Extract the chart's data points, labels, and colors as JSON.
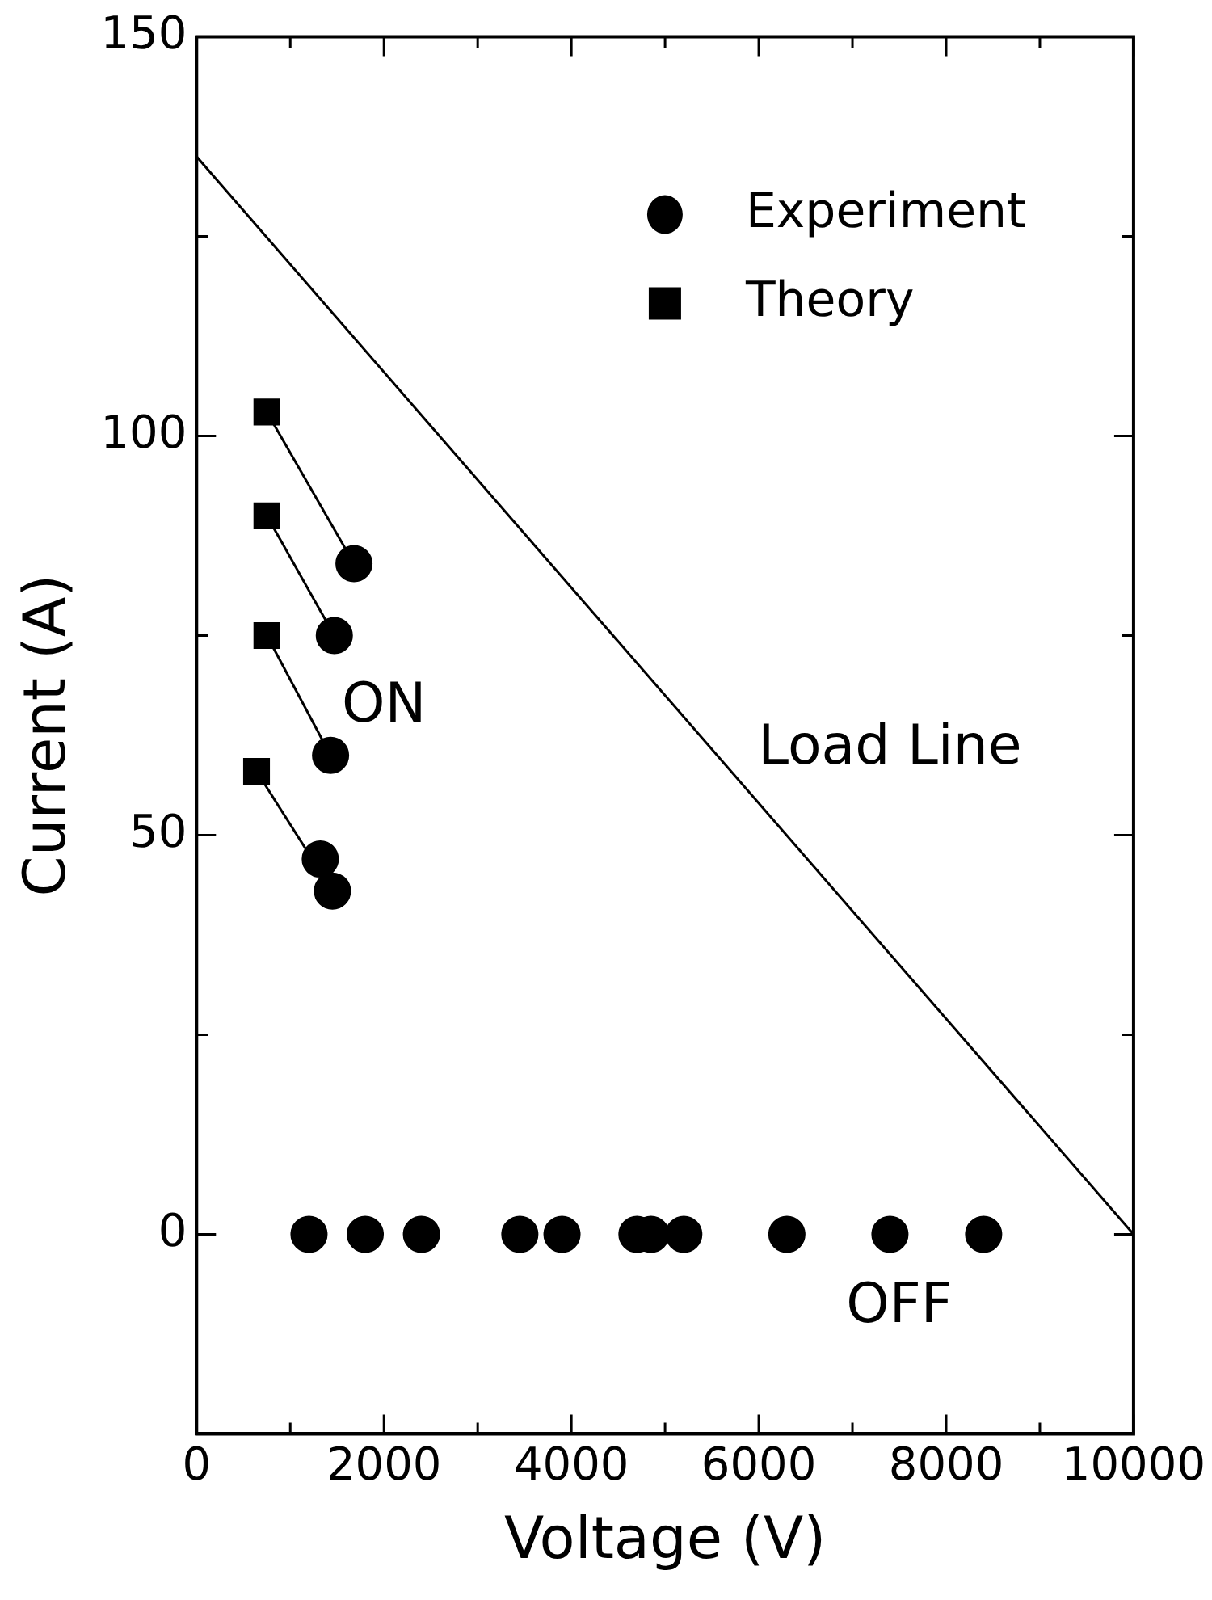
{
  "chart_data": {
    "type": "scatter",
    "xlabel": "Voltage (V)",
    "ylabel": "Current (A)",
    "xlim": [
      0,
      10000
    ],
    "xticks": [
      0,
      {
        "value": 1000,
        "label": null
      },
      2000,
      {
        "value": 3000,
        "label": null
      },
      4000,
      {
        "value": 5000,
        "label": null
      },
      6000,
      {
        "value": 7000,
        "label": null
      },
      8000,
      {
        "value": 9000,
        "label": null
      },
      10000
    ],
    "ylim": [
      -25,
      150
    ],
    "yticks": [
      {
        "value": -25,
        "label": null
      },
      0,
      {
        "value": 25,
        "label": null
      },
      50,
      {
        "value": 75,
        "label": null
      },
      100,
      {
        "value": 125,
        "label": null
      },
      150
    ],
    "grid": false,
    "legend": "top right",
    "series": [
      {
        "name": "Experiment",
        "type": "scatter",
        "marker": "circle",
        "color": "#000000",
        "x": [
          1680,
          1470,
          1430,
          1320,
          1450,
          1200,
          1800,
          2400,
          3450,
          3900,
          4700,
          4850,
          5200,
          6300,
          7400,
          8400
        ],
        "values": [
          84,
          75,
          60,
          47,
          43,
          0,
          0,
          0,
          0,
          0,
          0,
          0,
          0,
          0,
          0,
          0
        ]
      },
      {
        "name": "Theory",
        "type": "scatter",
        "marker": "square",
        "color": "#000000",
        "x": [
          750,
          750,
          750,
          640
        ],
        "values": [
          103,
          90,
          75,
          58
        ]
      },
      {
        "type": "line",
        "marker": "none",
        "color": "#000000",
        "x": [
          0,
          10000
        ],
        "values": [
          135,
          0
        ]
      },
      {
        "type": "line",
        "marker": "none",
        "color": "#000000",
        "x": [
          750,
          1680
        ],
        "values": [
          103,
          84
        ]
      },
      {
        "type": "line",
        "marker": "none",
        "color": "#000000",
        "x": [
          750,
          1470
        ],
        "values": [
          90,
          75
        ]
      },
      {
        "type": "line",
        "marker": "none",
        "color": "#000000",
        "x": [
          750,
          1430
        ],
        "values": [
          75,
          60
        ]
      },
      {
        "type": "line",
        "marker": "none",
        "color": "#000000",
        "x": [
          640,
          1450
        ],
        "values": [
          58,
          43
        ]
      }
    ],
    "annotations": [
      "ON",
      "Load Line",
      "OFF"
    ]
  }
}
